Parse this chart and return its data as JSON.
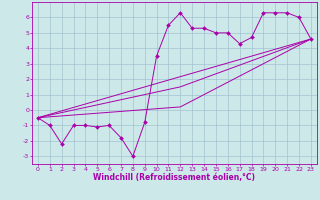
{
  "xlabel": "Windchill (Refroidissement éolien,°C)",
  "bg_color": "#cce8e8",
  "line_color": "#aa00aa",
  "grid_color": "#99bbcc",
  "curve1_x": [
    0,
    1,
    2,
    3,
    4,
    5,
    6,
    7,
    8,
    9,
    10,
    11,
    12,
    13,
    14,
    15,
    16,
    17,
    18,
    19,
    20,
    21,
    22,
    23
  ],
  "curve1_y": [
    -0.5,
    -1.0,
    -2.2,
    -1.0,
    -1.0,
    -1.1,
    -1.0,
    -1.8,
    -3.0,
    -0.8,
    3.5,
    5.5,
    6.3,
    5.3,
    5.3,
    5.0,
    5.0,
    4.3,
    4.7,
    6.3,
    6.3,
    6.3,
    6.0,
    4.6
  ],
  "curve2_x": [
    0,
    23
  ],
  "curve2_y": [
    -0.5,
    4.6
  ],
  "curve3_x": [
    0,
    12,
    23
  ],
  "curve3_y": [
    -0.5,
    1.5,
    4.6
  ],
  "curve4_x": [
    0,
    12,
    23
  ],
  "curve4_y": [
    -0.5,
    0.2,
    4.6
  ],
  "ylim": [
    -3.5,
    7.0
  ],
  "xlim": [
    -0.5,
    23.5
  ],
  "yticks": [
    -3,
    -2,
    -1,
    0,
    1,
    2,
    3,
    4,
    5,
    6
  ],
  "xticks": [
    0,
    1,
    2,
    3,
    4,
    5,
    6,
    7,
    8,
    9,
    10,
    11,
    12,
    13,
    14,
    15,
    16,
    17,
    18,
    19,
    20,
    21,
    22,
    23
  ],
  "tick_fontsize": 4.5,
  "xlabel_fontsize": 5.5,
  "marker_size": 2.0,
  "line_width": 0.7
}
